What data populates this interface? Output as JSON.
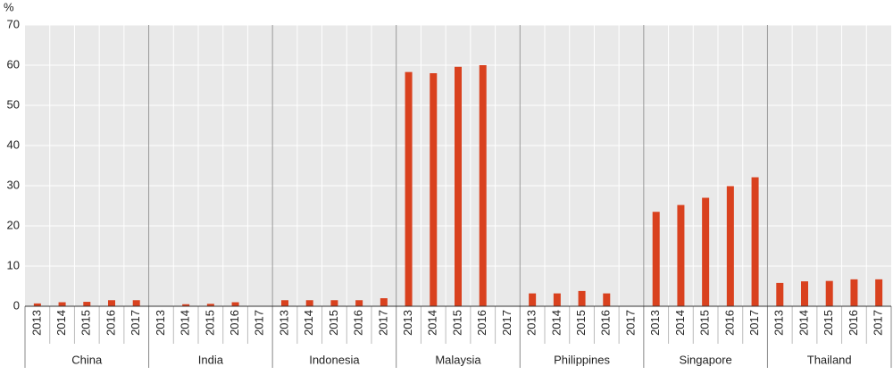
{
  "chart_data": {
    "type": "grouped-bar",
    "y_label": "%",
    "color": "#d9411e",
    "categories": [
      "2013",
      "2014",
      "2015",
      "2016",
      "2017"
    ],
    "groups": [
      {
        "name": "China",
        "values": [
          0.7,
          1.0,
          1.1,
          1.5,
          1.5
        ]
      },
      {
        "name": "India",
        "values": [
          null,
          0.5,
          0.6,
          1.0,
          null
        ]
      },
      {
        "name": "Indonesia",
        "values": [
          1.5,
          1.5,
          1.5,
          1.5,
          2.0
        ]
      },
      {
        "name": "Malaysia",
        "values": [
          58.3,
          58.0,
          59.6,
          60.0,
          null
        ]
      },
      {
        "name": "Philippines",
        "values": [
          3.2,
          3.2,
          3.8,
          3.2,
          null
        ]
      },
      {
        "name": "Singapore",
        "values": [
          23.5,
          25.2,
          27.0,
          29.9,
          32.1
        ]
      },
      {
        "name": "Thailand",
        "values": [
          5.8,
          6.2,
          6.3,
          6.7,
          6.7
        ]
      }
    ],
    "ylim": [
      0,
      70
    ],
    "yticks": [
      0,
      10,
      20,
      30,
      40,
      50,
      60,
      70
    ],
    "grid": true
  }
}
